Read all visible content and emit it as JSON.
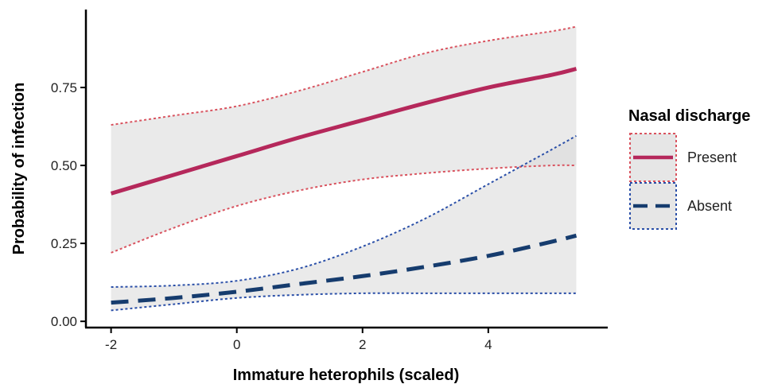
{
  "chart_data": {
    "type": "line",
    "xlabel": "Immature heterophils (scaled)",
    "ylabel": "Probability of infection",
    "xlim": [
      -2.4,
      5.9
    ],
    "ylim": [
      -0.02,
      1.0
    ],
    "x_ticks": [
      -2,
      0,
      2,
      4
    ],
    "x_tick_labels": [
      "-2",
      "0",
      "2",
      "4"
    ],
    "y_ticks": [
      0.0,
      0.25,
      0.5,
      0.75
    ],
    "y_tick_labels": [
      "0.00",
      "0.25",
      "0.50",
      "0.75"
    ],
    "grid": false,
    "legend": {
      "title": "Nasal discharge",
      "placement": "right",
      "entries": [
        "Present",
        "Absent"
      ]
    },
    "x": [
      -2,
      -1,
      0,
      1,
      2,
      3,
      4,
      5,
      5.4
    ],
    "series": [
      {
        "name": "Present",
        "color": "#b5285b",
        "ci_color": "#d9535f",
        "line_style": "solid",
        "values": [
          0.41,
          0.47,
          0.53,
          0.59,
          0.645,
          0.7,
          0.75,
          0.79,
          0.81
        ],
        "lower": [
          0.22,
          0.3,
          0.37,
          0.42,
          0.455,
          0.475,
          0.49,
          0.5,
          0.5
        ],
        "upper": [
          0.63,
          0.66,
          0.69,
          0.74,
          0.8,
          0.86,
          0.9,
          0.93,
          0.945
        ]
      },
      {
        "name": "Absent",
        "color": "#163c6e",
        "ci_color": "#2a4fa8",
        "line_style": "dashed",
        "values": [
          0.06,
          0.075,
          0.095,
          0.12,
          0.145,
          0.175,
          0.21,
          0.255,
          0.275
        ],
        "lower": [
          0.035,
          0.055,
          0.075,
          0.085,
          0.09,
          0.09,
          0.09,
          0.09,
          0.09
        ],
        "upper": [
          0.11,
          0.115,
          0.13,
          0.17,
          0.24,
          0.33,
          0.44,
          0.55,
          0.595
        ]
      }
    ]
  }
}
